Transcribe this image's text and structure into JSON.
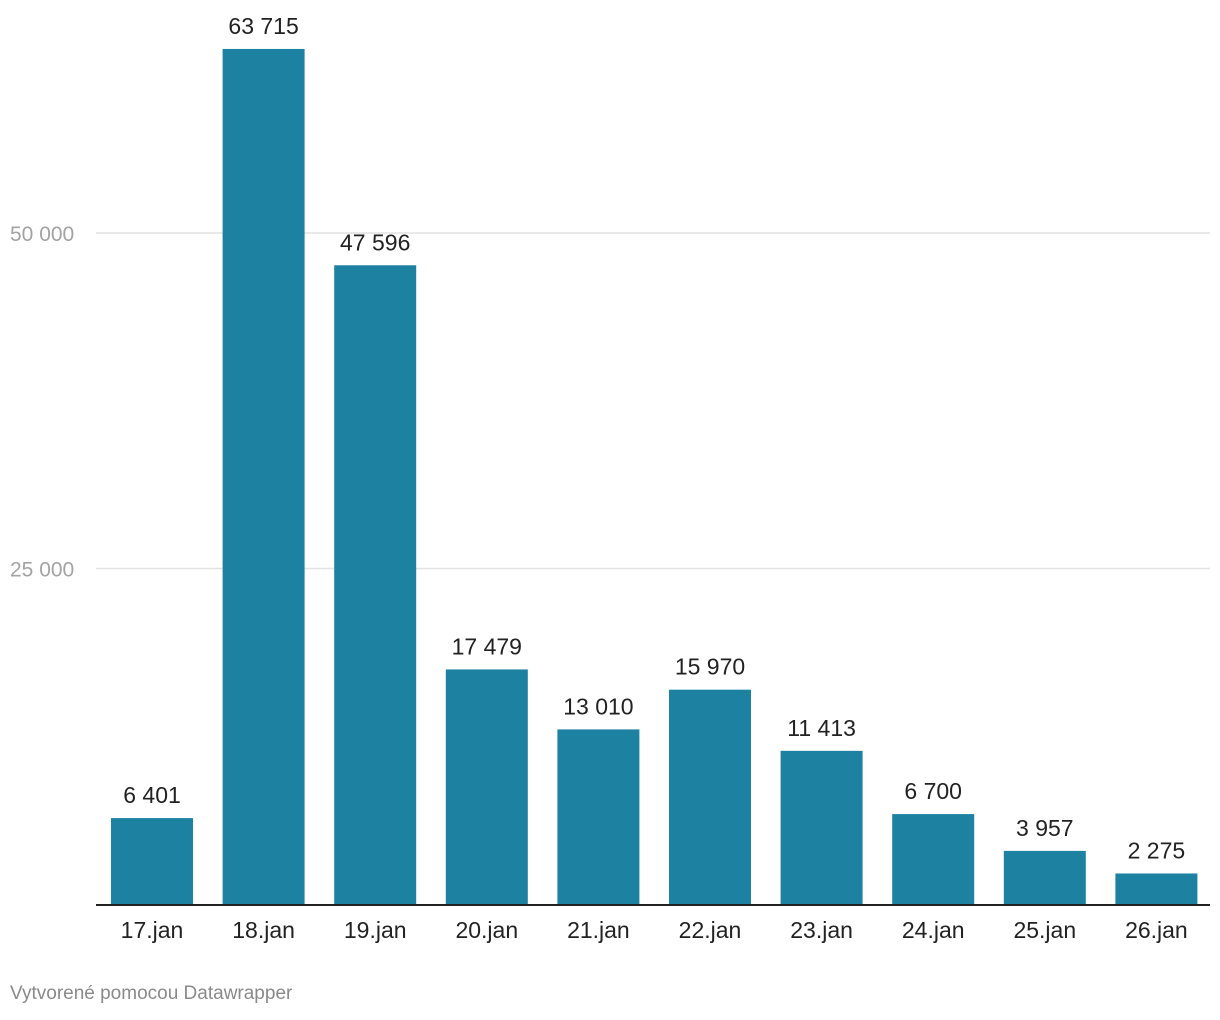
{
  "chart_data": {
    "type": "bar",
    "title": "",
    "xlabel": "",
    "ylabel": "",
    "ylim": [
      0,
      65000
    ],
    "yticks": [
      25000,
      50000
    ],
    "ytick_labels": [
      "25 000",
      "50 000"
    ],
    "grid": true,
    "categories": [
      "17.jan",
      "18.jan",
      "19.jan",
      "20.jan",
      "21.jan",
      "22.jan",
      "23.jan",
      "24.jan",
      "25.jan",
      "26.jan"
    ],
    "values": [
      6401,
      63715,
      47596,
      17479,
      13010,
      15970,
      11413,
      6700,
      3957,
      2275
    ],
    "value_labels": [
      "6 401",
      "63 715",
      "47 596",
      "17 479",
      "13 010",
      "15 970",
      "11 413",
      "6 700",
      "3 957",
      "2 275"
    ],
    "colors": {
      "bar": "#1d81a2",
      "grid": "#e2e2e2",
      "axis": "#222222"
    }
  },
  "footer": {
    "credit": "Vytvorené pomocou Datawrapper"
  }
}
